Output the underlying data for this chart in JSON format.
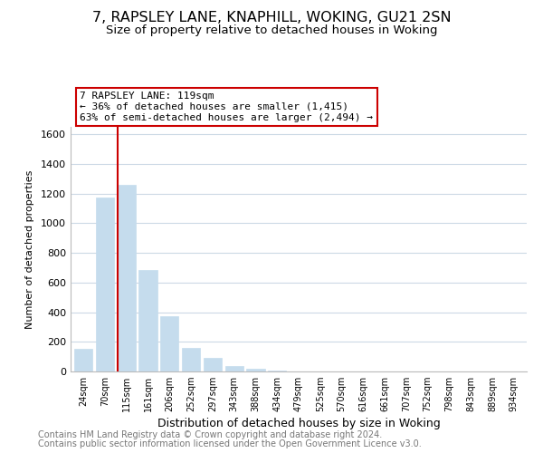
{
  "title": "7, RAPSLEY LANE, KNAPHILL, WOKING, GU21 2SN",
  "subtitle": "Size of property relative to detached houses in Woking",
  "xlabel": "Distribution of detached houses by size in Woking",
  "ylabel": "Number of detached properties",
  "bar_labels": [
    "24sqm",
    "70sqm",
    "115sqm",
    "161sqm",
    "206sqm",
    "252sqm",
    "297sqm",
    "343sqm",
    "388sqm",
    "434sqm",
    "479sqm",
    "525sqm",
    "570sqm",
    "616sqm",
    "661sqm",
    "707sqm",
    "752sqm",
    "798sqm",
    "843sqm",
    "889sqm",
    "934sqm"
  ],
  "bar_values": [
    150,
    1175,
    1260,
    685,
    375,
    160,
    90,
    35,
    20,
    5,
    0,
    0,
    0,
    0,
    0,
    0,
    0,
    0,
    0,
    0,
    0
  ],
  "bar_color": "#c5dced",
  "bar_edge_color": "#c5dced",
  "red_line_index": 2,
  "red_line_color": "#cc0000",
  "ylim": [
    0,
    1650
  ],
  "yticks": [
    0,
    200,
    400,
    600,
    800,
    1000,
    1200,
    1400,
    1600
  ],
  "annotation_text": "7 RAPSLEY LANE: 119sqm\n← 36% of detached houses are smaller (1,415)\n63% of semi-detached houses are larger (2,494) →",
  "annotation_box_color": "#ffffff",
  "annotation_box_edge": "#cc0000",
  "footer_line1": "Contains HM Land Registry data © Crown copyright and database right 2024.",
  "footer_line2": "Contains public sector information licensed under the Open Government Licence v3.0.",
  "background_color": "#ffffff",
  "grid_color": "#ccd9e5",
  "title_fontsize": 11.5,
  "subtitle_fontsize": 9.5,
  "footer_fontsize": 7.0
}
